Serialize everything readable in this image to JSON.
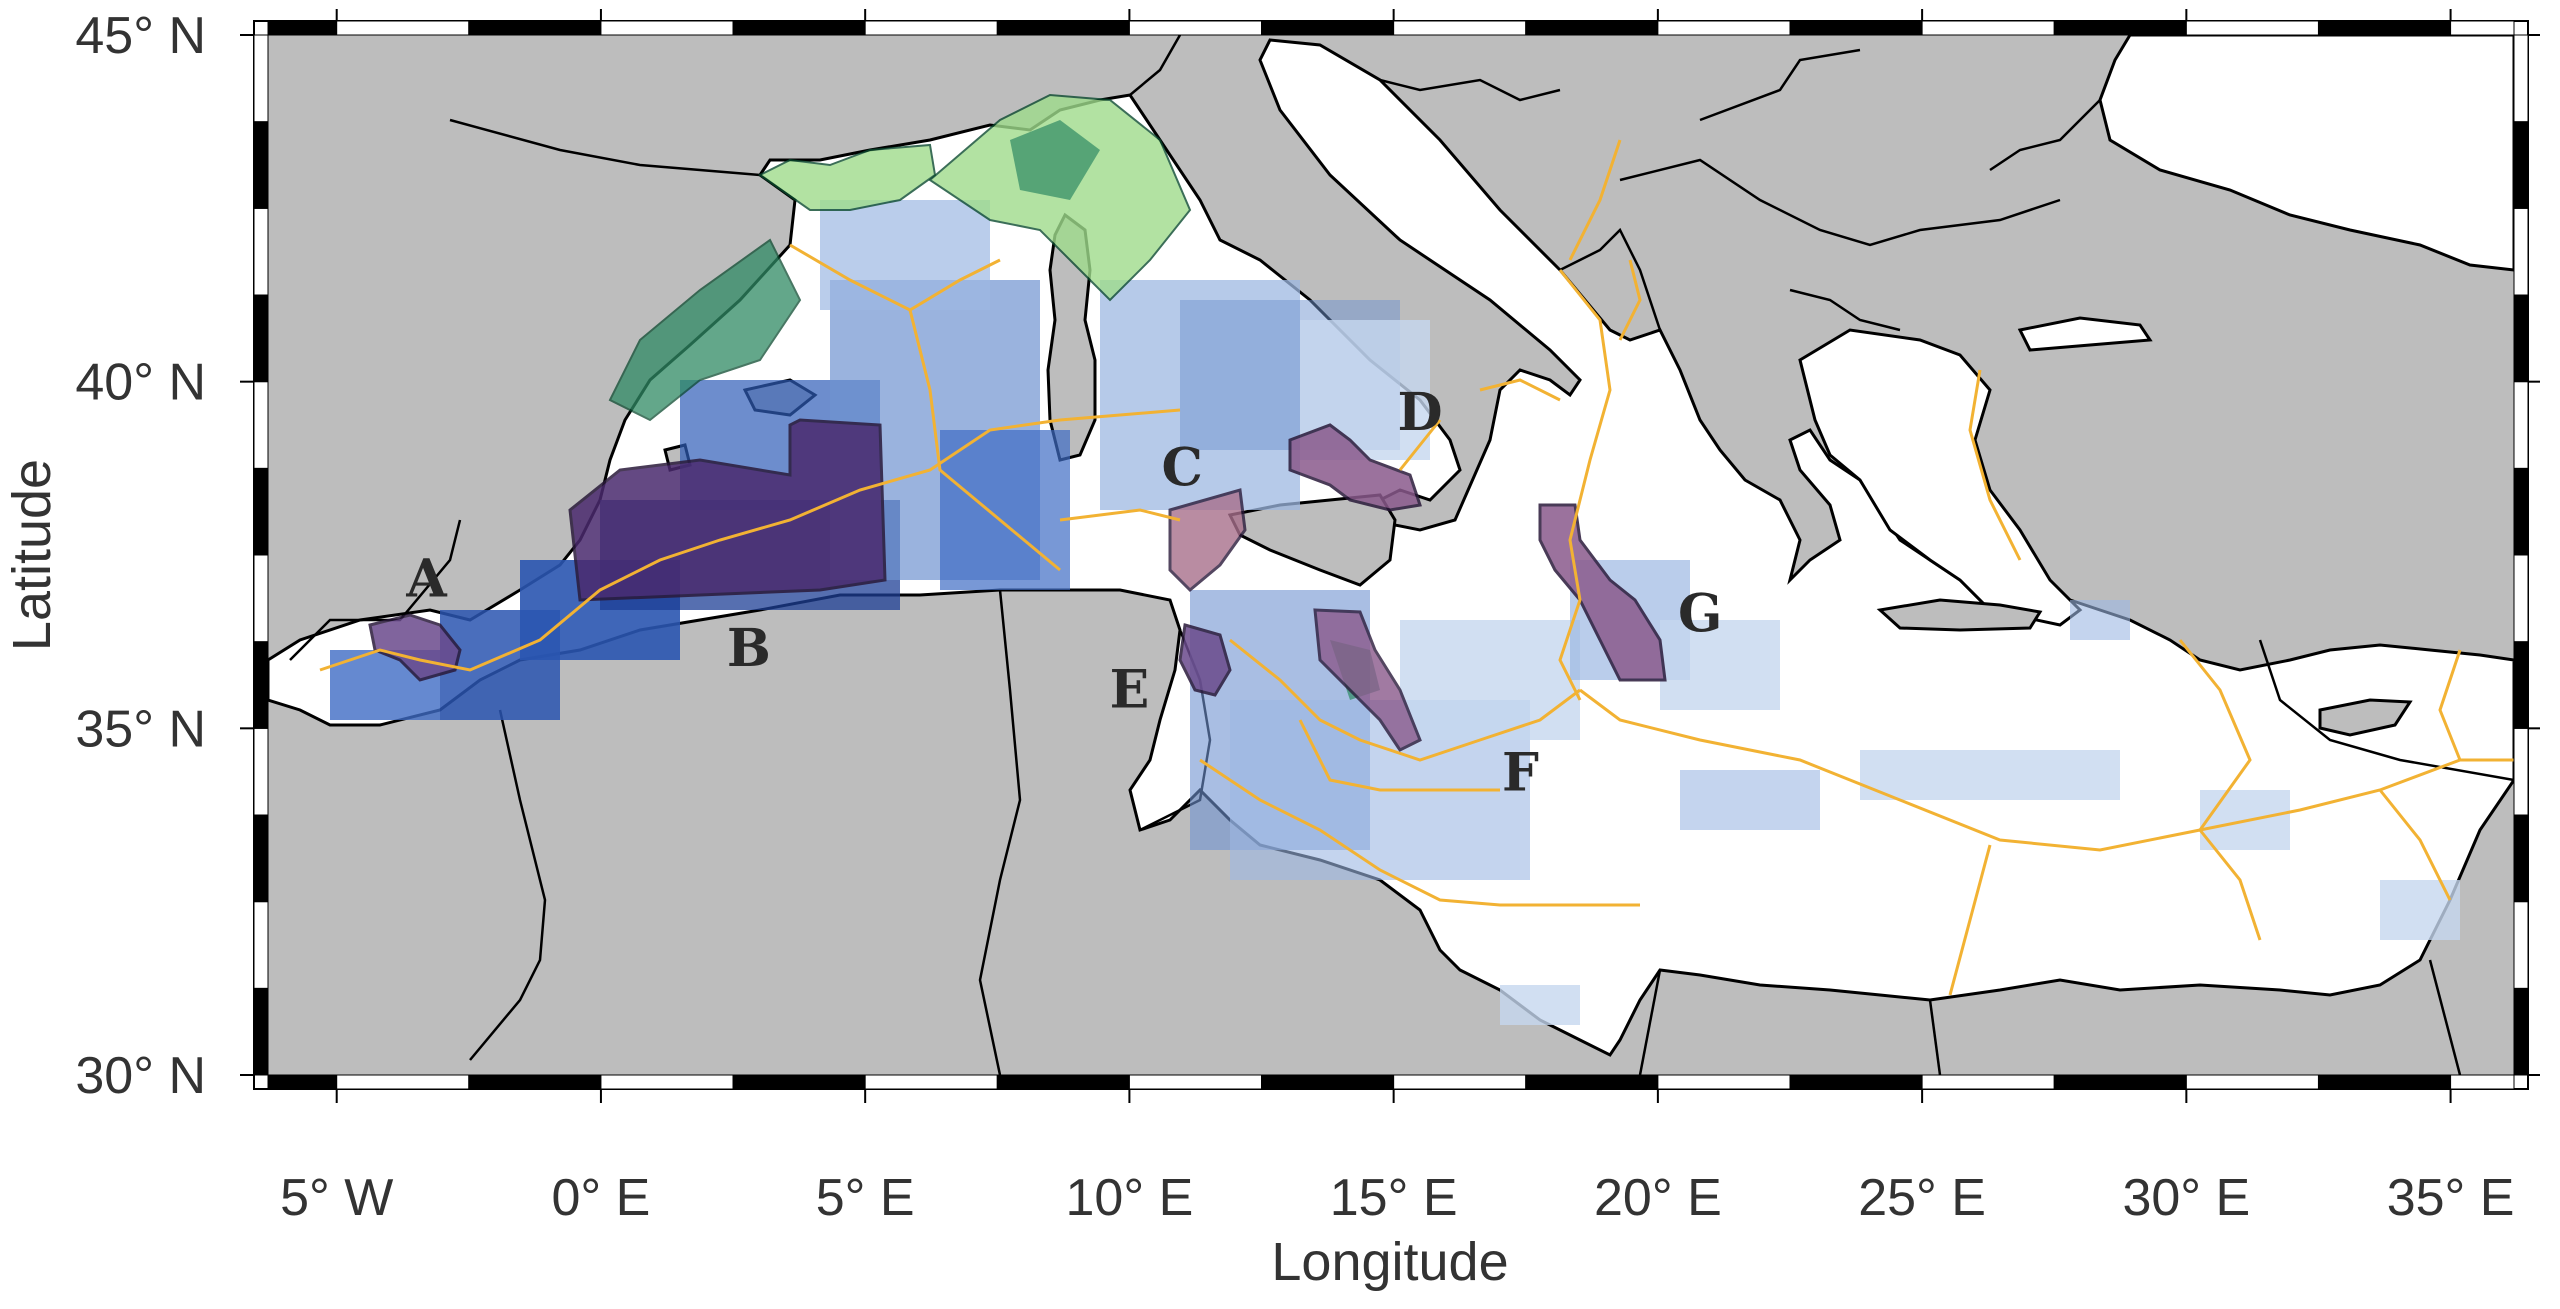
{
  "map": {
    "x_axis_title": "Longitude",
    "y_axis_title": "Latitude",
    "extent": {
      "lon": [
        -6.3,
        36.2
      ],
      "lat": [
        30.0,
        45.0
      ]
    },
    "x_ticks": [
      {
        "lon": -5,
        "label": "5° W"
      },
      {
        "lon": 0,
        "label": "0° E"
      },
      {
        "lon": 5,
        "label": "5° E"
      },
      {
        "lon": 10,
        "label": "10° E"
      },
      {
        "lon": 15,
        "label": "15° E"
      },
      {
        "lon": 20,
        "label": "20° E"
      },
      {
        "lon": 25,
        "label": "25° E"
      },
      {
        "lon": 30,
        "label": "30° E"
      },
      {
        "lon": 35,
        "label": "35° E"
      }
    ],
    "y_ticks": [
      {
        "lat": 30,
        "label": "30° N"
      },
      {
        "lat": 35,
        "label": "35° N"
      },
      {
        "lat": 40,
        "label": "40° N"
      },
      {
        "lat": 45,
        "label": "45° N"
      }
    ],
    "colors": {
      "land": "#bdbdbd",
      "sea": "#ffffff",
      "density_light": "#c6d7ef",
      "density_mid": "#6f93d0",
      "density_high": "#1d3f96",
      "protected_green": "#9fdc8c",
      "protected_dark_green": "#2f8a64",
      "priority_area": "#6a4a8c",
      "priority_highlight": "#d8a0b2",
      "boundary_lines": "#f2b233",
      "coastline": "#000000"
    },
    "regions": [
      {
        "label": "A",
        "lon": -3.3,
        "lat": 36.9
      },
      {
        "label": "B",
        "lon": 2.8,
        "lat": 35.9
      },
      {
        "label": "C",
        "lon": 11.0,
        "lat": 38.5
      },
      {
        "label": "D",
        "lon": 15.5,
        "lat": 39.3
      },
      {
        "label": "E",
        "lon": 10.0,
        "lat": 35.3
      },
      {
        "label": "F",
        "lon": 17.4,
        "lat": 34.1
      },
      {
        "label": "G",
        "lon": 20.8,
        "lat": 36.4
      }
    ]
  }
}
